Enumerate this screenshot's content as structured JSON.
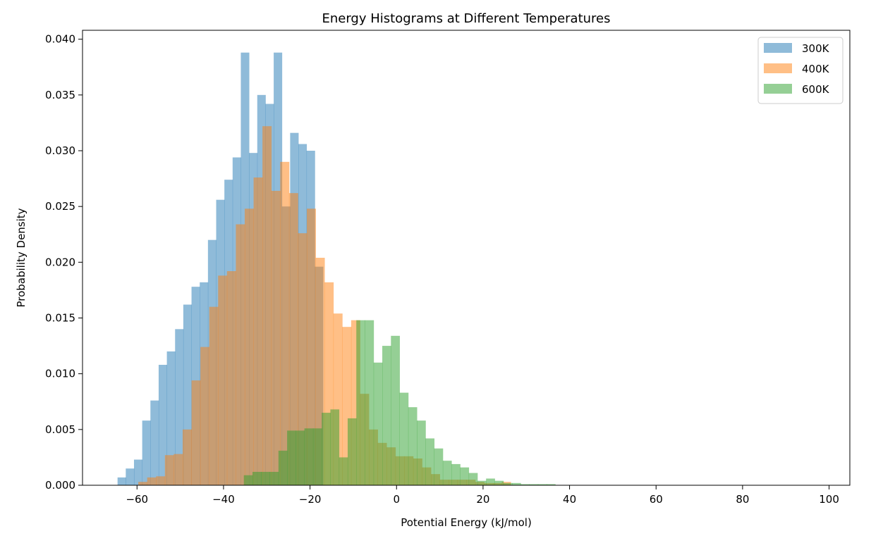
{
  "chart_data": {
    "type": "histogram",
    "title": "Energy Histograms at Different Temperatures",
    "xlabel": "Potential Energy (kJ/mol)",
    "ylabel": "Probability Density",
    "xlim": [
      -72.6,
      104.8
    ],
    "ylim": [
      0,
      0.0408
    ],
    "xticks": [
      -60,
      -40,
      -20,
      0,
      20,
      40,
      60,
      80,
      100
    ],
    "yticks": [
      0.0,
      0.005,
      0.01,
      0.015,
      0.02,
      0.025,
      0.03,
      0.035,
      0.04
    ],
    "xtick_labels": [
      "−60",
      "−40",
      "−20",
      "0",
      "20",
      "40",
      "60",
      "80",
      "100"
    ],
    "ytick_labels": [
      "0.000",
      "0.005",
      "0.010",
      "0.015",
      "0.020",
      "0.025",
      "0.030",
      "0.035",
      "0.040"
    ],
    "grid": false,
    "legend_position": "upper right",
    "series": [
      {
        "name": "300K",
        "color": "#1f77b4",
        "alpha": 0.5,
        "bin_start": -64.5,
        "bin_width": 1.9,
        "values": [
          0.0007,
          0.0015,
          0.0023,
          0.0058,
          0.0076,
          0.0108,
          0.012,
          0.014,
          0.0162,
          0.0178,
          0.0182,
          0.022,
          0.0256,
          0.0274,
          0.0294,
          0.0388,
          0.0298,
          0.035,
          0.0342,
          0.0388,
          0.025,
          0.0316,
          0.0306,
          0.03,
          0.0196
        ]
      },
      {
        "name": "400K",
        "color": "#ff7f0e",
        "alpha": 0.5,
        "bin_start": -59.7,
        "bin_width": 2.05,
        "values": [
          0.0003,
          0.0007,
          0.0008,
          0.0027,
          0.0028,
          0.005,
          0.0094,
          0.0124,
          0.016,
          0.0188,
          0.0192,
          0.0234,
          0.0248,
          0.0276,
          0.0322,
          0.0264,
          0.029,
          0.0262,
          0.0226,
          0.0248,
          0.0204,
          0.0182,
          0.0154,
          0.0142,
          0.0148,
          0.0082,
          0.005,
          0.0038,
          0.0034,
          0.0026,
          0.0026,
          0.0024,
          0.0016,
          0.001,
          0.0005,
          0.0005,
          0.0005,
          0.0005,
          0.0003,
          0.0002,
          0.0002,
          0.0003
        ]
      },
      {
        "name": "600K",
        "color": "#2ca02c",
        "alpha": 0.5,
        "bin_start": -35.3,
        "bin_width": 2.0,
        "values": [
          0.0009,
          0.0012,
          0.0012,
          0.0012,
          0.0031,
          0.0049,
          0.0049,
          0.0051,
          0.0051,
          0.0065,
          0.0068,
          0.0025,
          0.006,
          0.0148,
          0.0148,
          0.011,
          0.0125,
          0.0134,
          0.0083,
          0.007,
          0.0058,
          0.0042,
          0.0033,
          0.0022,
          0.0019,
          0.0016,
          0.0011,
          0.0004,
          0.0006,
          0.0004,
          0.0002,
          0.0002,
          0.0001,
          0.0001,
          0.0001,
          0.0001
        ]
      }
    ]
  }
}
